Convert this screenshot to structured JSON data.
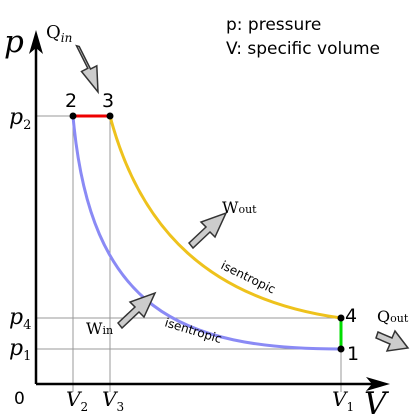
{
  "axes": {
    "y_title": "p",
    "x_title": "V",
    "origin": "0",
    "y_ticks": [
      {
        "sym": "p",
        "sub": "2"
      },
      {
        "sym": "p",
        "sub": "4"
      },
      {
        "sym": "p",
        "sub": "1"
      }
    ],
    "x_ticks": [
      {
        "sym": "V",
        "sub": "2"
      },
      {
        "sym": "V",
        "sub": "3"
      },
      {
        "sym": "V",
        "sub": "1"
      }
    ]
  },
  "legend": {
    "line1": "p: pressure",
    "line2": "V: specific volume"
  },
  "points": {
    "p1": "1",
    "p2": "2",
    "p3": "3",
    "p4": "4"
  },
  "curve_labels": {
    "upper": "isentropic",
    "lower": "isentropic"
  },
  "energy_labels": {
    "q_in": {
      "main": "Q",
      "sub": "in"
    },
    "q_out": {
      "main": "Q",
      "sub": "out"
    },
    "w_out": {
      "main": "W",
      "sub": "out"
    },
    "w_in": {
      "main": "W",
      "sub": "in"
    }
  },
  "colors": {
    "axis": "#000000",
    "gridline": "#999999",
    "heat_in_segment": "#ee0000",
    "heat_out_segment": "#00dd00",
    "expansion_curve": "#eec21c",
    "compression_curve": "#8a8af5",
    "arrow_fill": "#cccccc",
    "arrow_stroke": "#333333"
  }
}
